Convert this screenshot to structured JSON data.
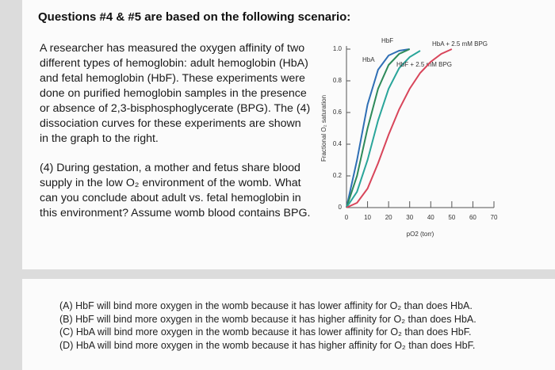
{
  "header": "Questions #4 & #5 are based on the following scenario:",
  "scenario": [
    "A researcher has measured the oxygen affinity of two",
    "different types of hemoglobin: adult hemoglobin (HbA)",
    "and fetal hemoglobin (HbF). These experiments were",
    "done on purified hemoglobin samples in the presence",
    "or absence of 2,3-bisphosphoglycerate (BPG). The (4)",
    "dissociation curves for these experiments are shown",
    "in the graph to the right."
  ],
  "question": [
    "(4) During gestation, a mother and fetus share blood",
    "supply in the low O₂ environment of the womb. What",
    "can you conclude about adult vs. fetal hemoglobin in",
    "this environment? Assume womb blood contains BPG."
  ],
  "options": [
    "(A) HbF will bind more oxygen in the womb because it has lower affinity for O₂ than does HbA.",
    "(B) HbF will bind more oxygen in the womb because it has higher affinity for O₂ than does HbA.",
    "(C) HbA will bind more oxygen in the womb because it has lower affinity for O₂ than does HbF.",
    "(D) HbA will bind more oxygen in the womb because it has higher affinity for O₂ than does HbF."
  ],
  "chart_data": {
    "type": "line",
    "xlabel": "pO2 (torr)",
    "ylabel": "Fractional O₂ saturation",
    "x": [
      0,
      5,
      10,
      15,
      20,
      25,
      30,
      35,
      40,
      45,
      50
    ],
    "series": [
      {
        "name": "HbF",
        "color": "#2f6fb5",
        "values": [
          0,
          0.3,
          0.65,
          0.87,
          0.96,
          0.99,
          1.0,
          null,
          null,
          null,
          null
        ]
      },
      {
        "name": "HbA",
        "color": "#2e8a5a",
        "values": [
          0,
          0.2,
          0.5,
          0.75,
          0.9,
          0.97,
          1.0,
          null,
          null,
          null,
          null
        ]
      },
      {
        "name": "HbF + 2.5 mM BPG",
        "color": "#2aa59a",
        "values": [
          0,
          0.1,
          0.3,
          0.55,
          0.75,
          0.88,
          0.95,
          0.99,
          null,
          null,
          null
        ]
      },
      {
        "name": "HbA + 2.5 mM BPG",
        "color": "#d8455a",
        "values": [
          0,
          0.03,
          0.12,
          0.28,
          0.46,
          0.62,
          0.75,
          0.85,
          0.92,
          0.97,
          1.0
        ]
      }
    ],
    "xlim": [
      0,
      70
    ],
    "xticks": [
      0,
      10,
      20,
      30,
      40,
      50,
      60,
      70
    ],
    "ylim": [
      0,
      1
    ],
    "yticks": [
      0,
      0.2,
      0.4,
      0.6,
      0.8,
      {
        "value": 1,
        "label": "1.0"
      }
    ]
  }
}
